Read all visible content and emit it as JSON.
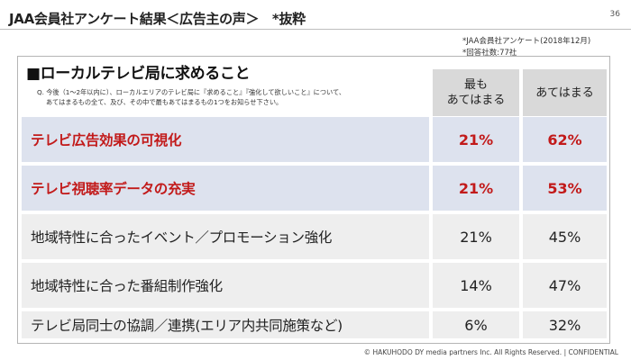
{
  "header": {
    "title": "JAA会員社アンケート結果＜広告主の声＞　*抜粋",
    "page_number": "36"
  },
  "source": {
    "line1": "*JAA会員社アンケート(2018年12月)",
    "line2": "*回答社数:77社"
  },
  "section": {
    "heading": "■ローカルテレビ局に求めること",
    "question_line1": "Q. 今後（1～2年以内に）、ローカルエリアのテレビ局に『求めること』『強化して欲しいこと』について、",
    "question_line2": "あてはまるもの全て、及び、その中で最もあてはまるもの1つをお知らせ下さい。"
  },
  "table": {
    "columns": [
      {
        "line1": "最も",
        "line2": "あてはまる"
      },
      {
        "label": "あてはまる"
      }
    ],
    "rows": [
      {
        "label": "テレビ広告効果の可視化",
        "most": "21%",
        "applicable": "62%"
      },
      {
        "label": "テレビ視聴率データの充実",
        "most": "21%",
        "applicable": "53%"
      },
      {
        "label": "地域特性に合ったイベント／プロモーション強化",
        "most": "21%",
        "applicable": "45%"
      },
      {
        "label": "地域特性に合った番組制作強化",
        "most": "14%",
        "applicable": "47%"
      },
      {
        "label": "テレビ局同士の協調／連携(エリア内共同施策など)",
        "most": "6%",
        "applicable": "32%"
      }
    ]
  },
  "footer": {
    "copyright": "© HAKUHODO DY media partners Inc. All Rights Reserved. | CONFIDENTIAL"
  },
  "colors": {
    "highlight_text": "#c21a1a",
    "highlight_row": "#dde2ee",
    "plain_row": "#eeeeee",
    "column_header": "#d9d9d9"
  }
}
